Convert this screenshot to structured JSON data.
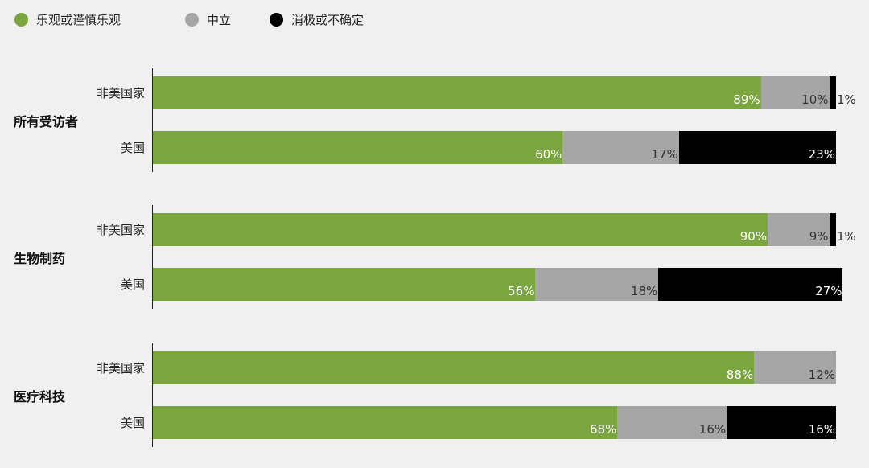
{
  "chart_data": {
    "type": "bar",
    "orientation": "horizontal",
    "stacked": true,
    "legend": {
      "placement": "top-left",
      "items": [
        {
          "name": "乐观或谨慎乐观",
          "color": "#7ba53e"
        },
        {
          "name": "中立",
          "color": "#a6a6a6"
        },
        {
          "name": "消极或不确定",
          "color": "#000000"
        }
      ]
    },
    "xlim": [
      0,
      100
    ],
    "grid": false,
    "groups": [
      {
        "label": "所有受访者",
        "rows": [
          {
            "label": "非美国家",
            "values": [
              89,
              10,
              1
            ],
            "labels": [
              "89%",
              "10%",
              "1%"
            ]
          },
          {
            "label": "美国",
            "values": [
              60,
              17,
              23
            ],
            "labels": [
              "60%",
              "17%",
              "23%"
            ]
          }
        ]
      },
      {
        "label": "生物制药",
        "rows": [
          {
            "label": "非美国家",
            "values": [
              90,
              9,
              1
            ],
            "labels": [
              "90%",
              "9%",
              "1%"
            ]
          },
          {
            "label": "美国",
            "values": [
              56,
              18,
              27
            ],
            "labels": [
              "56%",
              "18%",
              "27%"
            ]
          }
        ]
      },
      {
        "label": "医疗科技",
        "rows": [
          {
            "label": "非美国家",
            "values": [
              88,
              12,
              0
            ],
            "labels": [
              "88%",
              "12%",
              ""
            ]
          },
          {
            "label": "美国",
            "values": [
              68,
              16,
              16
            ],
            "labels": [
              "68%",
              "16%",
              "16%"
            ]
          }
        ]
      }
    ]
  }
}
